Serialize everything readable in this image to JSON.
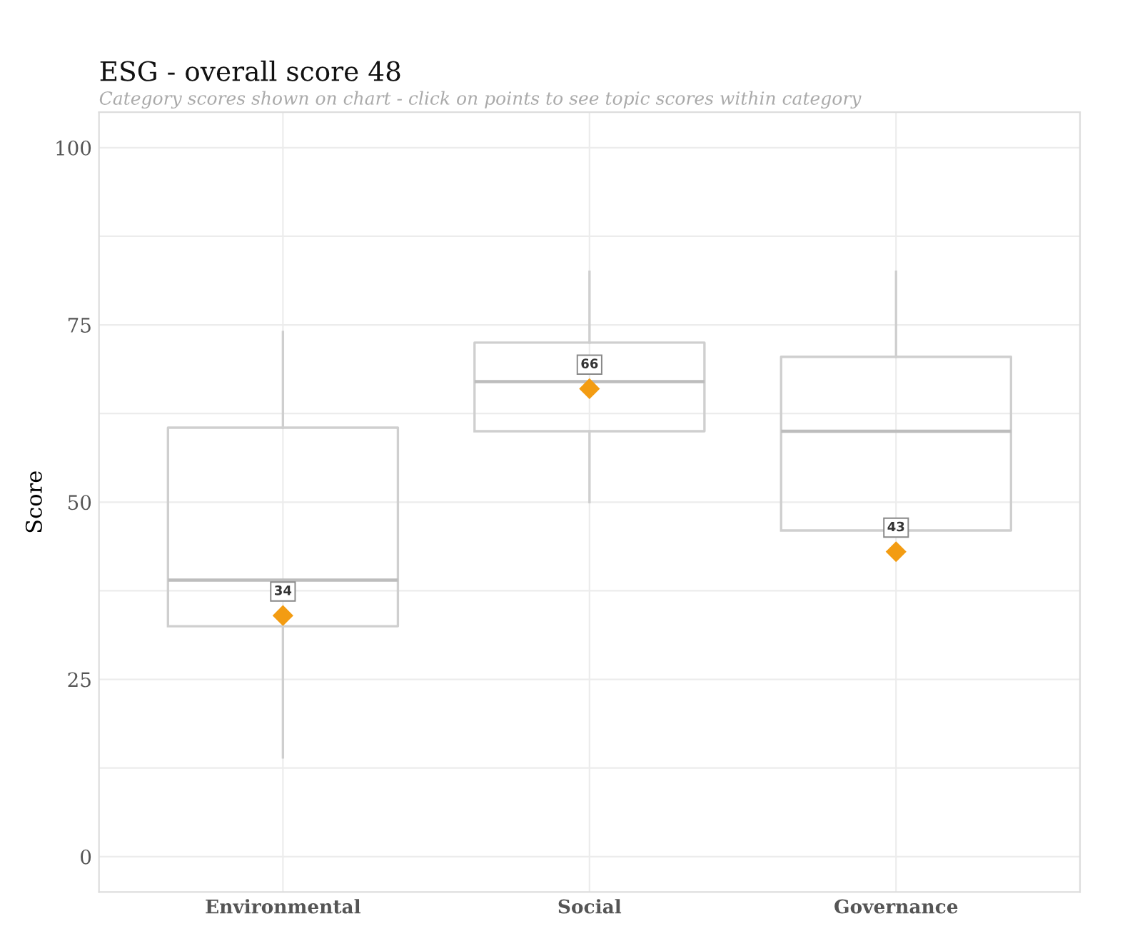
{
  "chart_data": {
    "type": "box",
    "title": "ESG - overall score 48",
    "subtitle": "Category scores shown on chart - click on points to see topic scores within category",
    "ylabel": "Score",
    "categories": [
      "Environmental",
      "Social",
      "Governance"
    ],
    "boxes": [
      {
        "low": 14,
        "q1": 32.5,
        "median": 39,
        "q3": 60.5,
        "high": 74
      },
      {
        "low": 50,
        "q1": 60,
        "median": 67,
        "q3": 72.5,
        "high": 82.5
      },
      {
        "low": 46,
        "q1": 46,
        "median": 60,
        "q3": 70.5,
        "high": 82.5
      }
    ],
    "series": [
      {
        "type": "scatter",
        "color": "#f39c12",
        "x": [
          "Environmental",
          "Social",
          "Governance"
        ],
        "values": [
          34,
          66,
          43
        ],
        "marker": "diamond",
        "data_labels": true
      }
    ],
    "ylim": [
      -5,
      105
    ],
    "yticks": [
      0,
      {
        "value": 12.5,
        "label": null
      },
      25,
      {
        "value": 37.5,
        "label": null
      },
      50,
      {
        "value": 62.5,
        "label": null
      },
      75,
      {
        "value": 87.5,
        "label": null
      },
      100
    ],
    "grid": true,
    "legend": false
  }
}
